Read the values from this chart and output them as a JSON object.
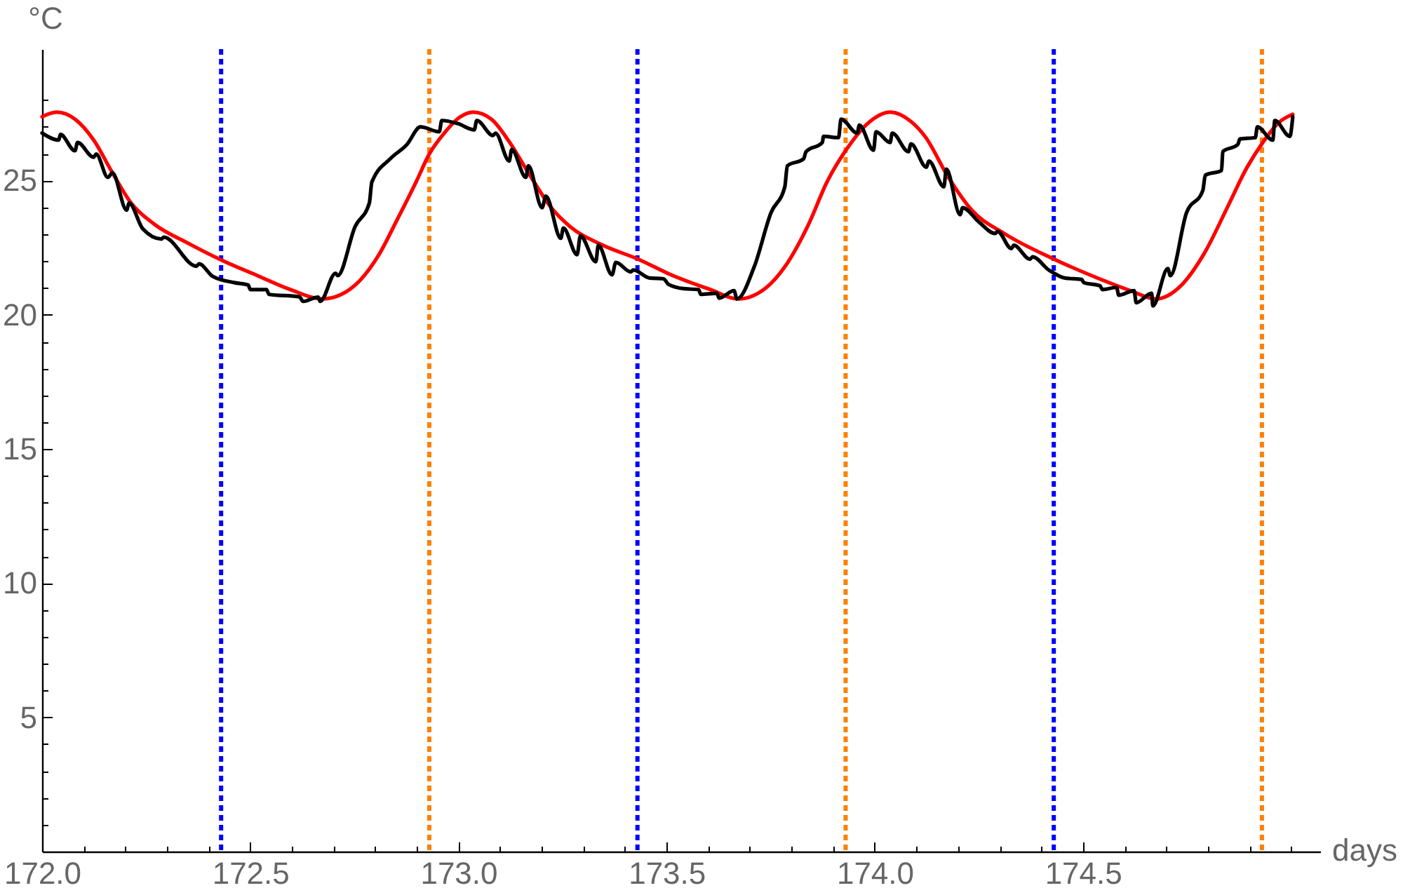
{
  "chart_data": {
    "type": "line",
    "xlabel": "days",
    "ylabel": "°C",
    "xlim": [
      172.0,
      175.07
    ],
    "ylim": [
      0,
      29.9
    ],
    "xticks": [
      {
        "value": 172.0,
        "label": "172.0"
      },
      {
        "value": 172.1,
        "label": null
      },
      {
        "value": 172.2,
        "label": null
      },
      {
        "value": 172.3,
        "label": null
      },
      {
        "value": 172.4,
        "label": null
      },
      172.5,
      {
        "value": 172.6,
        "label": null
      },
      {
        "value": 172.7,
        "label": null
      },
      {
        "value": 172.8,
        "label": null
      },
      {
        "value": 172.9,
        "label": null
      },
      {
        "value": 173.0,
        "label": "173.0"
      },
      {
        "value": 173.1,
        "label": null
      },
      {
        "value": 173.2,
        "label": null
      },
      {
        "value": 173.3,
        "label": null
      },
      {
        "value": 173.4,
        "label": null
      },
      173.5,
      {
        "value": 173.6,
        "label": null
      },
      {
        "value": 173.7,
        "label": null
      },
      {
        "value": 173.8,
        "label": null
      },
      {
        "value": 173.9,
        "label": null
      },
      {
        "value": 174.0,
        "label": "174.0"
      },
      {
        "value": 174.1,
        "label": null
      },
      {
        "value": 174.2,
        "label": null
      },
      {
        "value": 174.3,
        "label": null
      },
      {
        "value": 174.4,
        "label": null
      },
      174.5,
      {
        "value": 174.6,
        "label": null
      },
      {
        "value": 174.7,
        "label": null
      },
      {
        "value": 174.8,
        "label": null
      },
      {
        "value": 174.9,
        "label": null
      },
      {
        "value": 175.0,
        "label": null
      }
    ],
    "yticks": [
      {
        "value": 1,
        "label": null
      },
      {
        "value": 2,
        "label": null
      },
      {
        "value": 3,
        "label": null
      },
      {
        "value": 4,
        "label": null
      },
      5,
      {
        "value": 6,
        "label": null
      },
      {
        "value": 7,
        "label": null
      },
      {
        "value": 8,
        "label": null
      },
      {
        "value": 9,
        "label": null
      },
      10,
      {
        "value": 11,
        "label": null
      },
      {
        "value": 12,
        "label": null
      },
      {
        "value": 13,
        "label": null
      },
      {
        "value": 14,
        "label": null
      },
      15,
      {
        "value": 16,
        "label": null
      },
      {
        "value": 17,
        "label": null
      },
      {
        "value": 18,
        "label": null
      },
      {
        "value": 19,
        "label": null
      },
      20,
      {
        "value": 21,
        "label": null
      },
      {
        "value": 22,
        "label": null
      },
      {
        "value": 23,
        "label": null
      },
      {
        "value": 24,
        "label": null
      },
      25,
      {
        "value": 26,
        "label": null
      },
      {
        "value": 27,
        "label": null
      },
      {
        "value": 28,
        "label": null
      }
    ],
    "series": [
      {
        "color": "#ff0000",
        "x": [
          172.0,
          172.035,
          172.079,
          172.124,
          172.169,
          172.214,
          172.27,
          172.349,
          172.432,
          172.517,
          172.596,
          172.674,
          172.719,
          172.764,
          172.809,
          172.853,
          172.898,
          172.93,
          172.966,
          173.005,
          173.035,
          173.079,
          173.122,
          173.168,
          173.223,
          173.268,
          173.347,
          173.432,
          173.515,
          173.605,
          173.672,
          173.74,
          173.785,
          173.841,
          173.885,
          173.932,
          173.986,
          174.037,
          174.087,
          174.121,
          174.177,
          174.233,
          174.311,
          174.431,
          174.535,
          174.614,
          174.675,
          174.737,
          174.793,
          174.849,
          174.893,
          174.932,
          174.971,
          175.004
        ],
        "values": [
          27.38,
          27.55,
          27.29,
          26.51,
          25.29,
          24.16,
          23.37,
          22.68,
          22.03,
          21.46,
          20.94,
          20.59,
          20.76,
          21.29,
          22.24,
          23.55,
          24.94,
          25.99,
          26.77,
          27.38,
          27.55,
          27.29,
          26.45,
          25.29,
          23.99,
          23.29,
          22.59,
          22.07,
          21.46,
          20.94,
          20.59,
          21.02,
          21.81,
          23.37,
          24.94,
          26.16,
          27.17,
          27.55,
          27.2,
          26.64,
          25.12,
          23.9,
          23.03,
          22.07,
          21.37,
          20.9,
          20.59,
          21.11,
          22.33,
          24.07,
          25.46,
          26.42,
          27.17,
          27.47
        ]
      },
      {
        "color": "#000000",
        "x": [
          172.0,
          172.04,
          172.044,
          172.079,
          172.085,
          172.124,
          172.13,
          172.158,
          172.169,
          172.203,
          172.209,
          172.242,
          172.287,
          172.292,
          172.371,
          172.377,
          172.41,
          172.461,
          172.495,
          172.5,
          172.539,
          172.545,
          172.618,
          172.627,
          172.663,
          172.668,
          172.705,
          172.71,
          172.752,
          172.786,
          172.792,
          172.836,
          172.876,
          172.909,
          172.954,
          172.96,
          172.999,
          173.038,
          173.044,
          173.083,
          173.089,
          173.122,
          173.128,
          173.162,
          173.168,
          173.201,
          173.21,
          173.246,
          173.252,
          173.285,
          173.293,
          173.33,
          173.336,
          173.369,
          173.378,
          173.414,
          173.42,
          173.459,
          173.493,
          173.504,
          173.543,
          173.577,
          173.582,
          173.621,
          173.626,
          173.662,
          173.669,
          173.711,
          173.751,
          173.784,
          173.79,
          173.829,
          173.835,
          173.874,
          173.877,
          173.913,
          173.919,
          173.958,
          173.963,
          173.997,
          174.003,
          174.037,
          174.042,
          174.081,
          174.087,
          174.124,
          174.13,
          174.166,
          174.172,
          174.205,
          174.211,
          174.25,
          174.289,
          174.295,
          174.328,
          174.334,
          174.373,
          174.379,
          174.418,
          174.457,
          174.497,
          174.502,
          174.541,
          174.547,
          174.581,
          174.586,
          174.623,
          174.628,
          174.665,
          174.668,
          174.704,
          174.71,
          174.749,
          174.788,
          174.794,
          174.833,
          174.836,
          174.872,
          174.877,
          174.914,
          174.919,
          174.956,
          174.961,
          174.997,
          175.004
        ],
        "values": [
          26.77,
          26.51,
          26.72,
          26.11,
          26.42,
          25.87,
          25.99,
          25.12,
          25.29,
          23.9,
          24.16,
          23.2,
          22.82,
          22.89,
          21.81,
          21.9,
          21.43,
          21.2,
          21.11,
          20.94,
          20.94,
          20.76,
          20.67,
          20.5,
          20.66,
          20.5,
          21.55,
          21.46,
          23.29,
          24.16,
          24.94,
          25.81,
          26.34,
          27.0,
          26.82,
          27.24,
          27.12,
          26.89,
          27.24,
          26.68,
          26.77,
          25.73,
          26.16,
          25.12,
          25.55,
          23.99,
          24.42,
          22.85,
          23.23,
          22.24,
          22.94,
          21.98,
          22.59,
          21.49,
          21.95,
          21.6,
          21.67,
          21.37,
          21.34,
          21.14,
          20.97,
          20.94,
          20.76,
          20.8,
          20.62,
          20.9,
          20.59,
          21.81,
          23.81,
          24.77,
          25.55,
          25.81,
          26.08,
          26.42,
          26.65,
          26.6,
          27.29,
          26.77,
          27.07,
          26.13,
          26.82,
          26.42,
          26.77,
          26.08,
          26.37,
          25.5,
          25.73,
          24.77,
          25.43,
          23.73,
          23.99,
          23.46,
          23.03,
          23.11,
          22.47,
          22.59,
          22.07,
          22.16,
          21.67,
          21.37,
          21.32,
          21.2,
          21.08,
          20.94,
          21.02,
          20.73,
          20.9,
          20.45,
          20.8,
          20.33,
          21.72,
          21.46,
          23.81,
          24.63,
          25.2,
          25.38,
          26.08,
          26.34,
          26.55,
          26.6,
          27.0,
          26.51,
          27.24,
          26.65,
          27.38
        ]
      }
    ],
    "ref_lines": [
      {
        "axis": "x",
        "value": 172.43,
        "color": "#0000ff",
        "line_style": "dotted"
      },
      {
        "axis": "x",
        "value": 172.93,
        "color": "#ff8000",
        "line_style": "dotted"
      },
      {
        "axis": "x",
        "value": 173.43,
        "color": "#0000ff",
        "line_style": "dotted"
      },
      {
        "axis": "x",
        "value": 173.93,
        "color": "#ff8000",
        "line_style": "dotted"
      },
      {
        "axis": "x",
        "value": 174.43,
        "color": "#0000ff",
        "line_style": "dotted"
      },
      {
        "axis": "x",
        "value": 174.93,
        "color": "#ff8000",
        "line_style": "dotted"
      }
    ]
  }
}
